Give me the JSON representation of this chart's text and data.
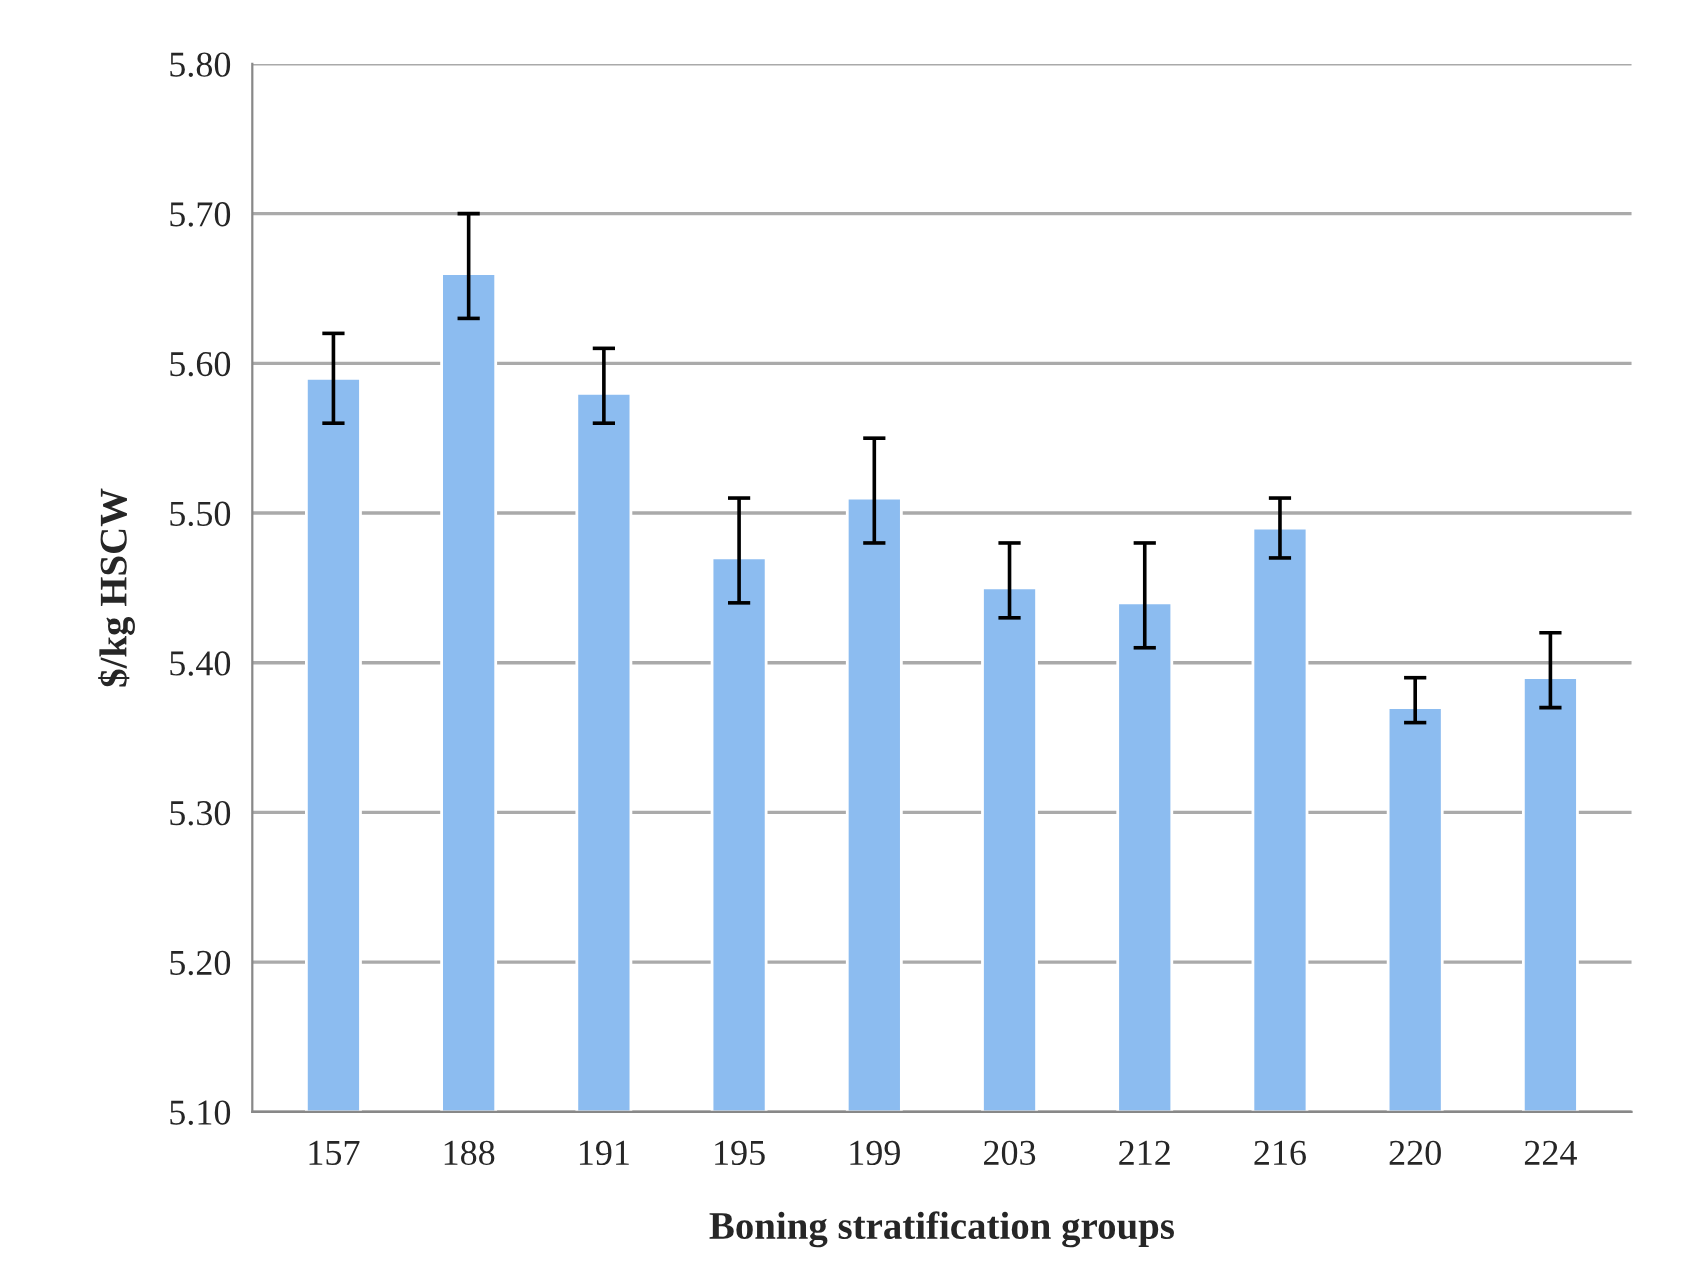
{
  "chart_data": {
    "type": "bar",
    "xlabel": "Boning stratification groups",
    "ylabel": "$/kg HSCW",
    "categories": [
      "157",
      "188",
      "191",
      "195",
      "199",
      "203",
      "212",
      "216",
      "220",
      "224"
    ],
    "values": [
      5.59,
      5.66,
      5.58,
      5.47,
      5.51,
      5.45,
      5.44,
      5.49,
      5.37,
      5.39
    ],
    "errors": [
      [
        5.56,
        5.62
      ],
      [
        5.63,
        5.7
      ],
      [
        5.56,
        5.61
      ],
      [
        5.44,
        5.51
      ],
      [
        5.48,
        5.55
      ],
      [
        5.43,
        5.48
      ],
      [
        5.41,
        5.48
      ],
      [
        5.47,
        5.51
      ],
      [
        5.36,
        5.39
      ],
      [
        5.37,
        5.42
      ]
    ],
    "color": "#8cbcf0",
    "ylim": [
      5.1,
      5.8
    ],
    "yticks": [
      {
        "value": 5.1,
        "label": "5.10"
      },
      {
        "value": 5.2,
        "label": "5.20"
      },
      {
        "value": 5.3,
        "label": "5.30"
      },
      {
        "value": 5.4,
        "label": "5.40"
      },
      {
        "value": 5.5,
        "label": "5.50"
      },
      {
        "value": 5.6,
        "label": "5.60"
      },
      {
        "value": 5.7,
        "label": "5.70"
      },
      {
        "value": 5.8,
        "label": "5.80"
      }
    ],
    "grid": "y"
  }
}
